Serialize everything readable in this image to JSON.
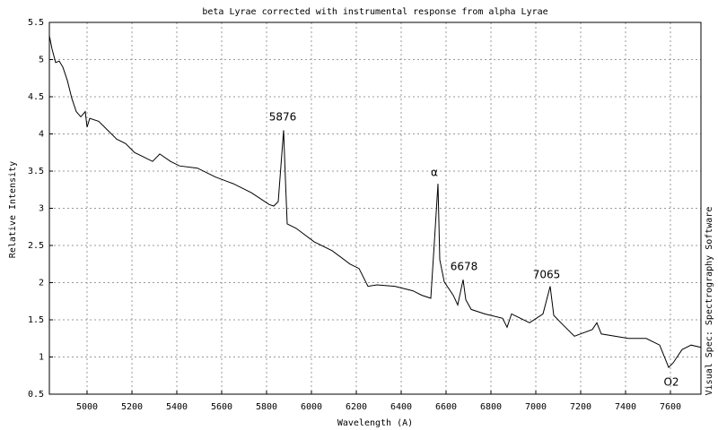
{
  "chart_data": {
    "type": "line",
    "title": "beta Lyrae corrected with instrumental response from alpha Lyrae",
    "x_label": "Wavelength (A)",
    "y_label": "Relative Intensity",
    "side_label": "Visual Spec: Spectrography Software",
    "annotations": [
      "5876",
      "α",
      "6678",
      "7065",
      "O2"
    ],
    "grid": true,
    "xlim": [
      4832,
      7736
    ],
    "ylim": [
      0.5,
      5.5
    ],
    "xticks": [
      5000,
      5200,
      5400,
      5600,
      5800,
      6000,
      6200,
      6400,
      6600,
      6800,
      7000,
      7200,
      7400,
      7600
    ],
    "yticks": [
      0.5,
      1,
      1.5,
      2,
      2.5,
      3,
      3.5,
      4,
      4.5,
      5,
      5.5
    ],
    "series": [
      {
        "color": "#000000",
        "x": [
          4832,
          4844,
          4860,
          4876,
          4892,
          4912,
          4932,
          4952,
          4972,
          4992,
          5000,
          5012,
          5052,
          5092,
          5132,
          5172,
          5212,
          5252,
          5292,
          5324,
          5372,
          5412,
          5492,
          5572,
          5652,
          5732,
          5772,
          5812,
          5832,
          5852,
          5864,
          5876,
          5884,
          5892,
          5932,
          6012,
          6092,
          6172,
          6212,
          6252,
          6292,
          6372,
          6452,
          6492,
          6532,
          6548,
          6564,
          6572,
          6592,
          6632,
          6652,
          6676,
          6688,
          6712,
          6772,
          6852,
          6872,
          6892,
          6972,
          7032,
          7064,
          7080,
          7112,
          7172,
          7252,
          7272,
          7292,
          7412,
          7492,
          7552,
          7592,
          7612,
          7652,
          7692,
          7736
        ],
        "values": [
          5.32,
          5.14,
          4.96,
          4.98,
          4.9,
          4.72,
          4.48,
          4.3,
          4.23,
          4.3,
          4.09,
          4.21,
          4.17,
          4.05,
          3.93,
          3.87,
          3.75,
          3.69,
          3.63,
          3.73,
          3.63,
          3.57,
          3.54,
          3.42,
          3.33,
          3.21,
          3.13,
          3.05,
          3.03,
          3.09,
          3.57,
          4.05,
          3.39,
          2.79,
          2.73,
          2.55,
          2.43,
          2.25,
          2.19,
          1.95,
          1.97,
          1.95,
          1.89,
          1.83,
          1.79,
          2.55,
          3.33,
          2.31,
          2.01,
          1.83,
          1.7,
          2.04,
          1.77,
          1.64,
          1.58,
          1.52,
          1.4,
          1.58,
          1.46,
          1.58,
          1.95,
          1.56,
          1.46,
          1.28,
          1.37,
          1.46,
          1.31,
          1.25,
          1.25,
          1.16,
          0.86,
          0.92,
          1.1,
          1.16,
          1.13
        ]
      }
    ]
  }
}
